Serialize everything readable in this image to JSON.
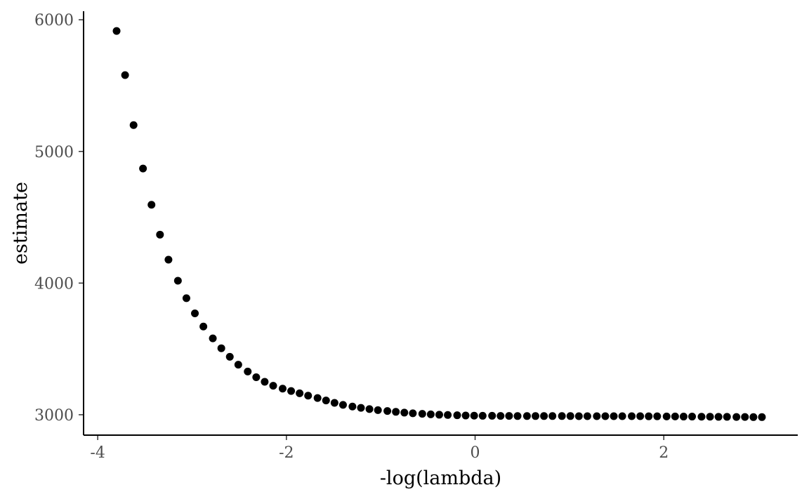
{
  "chart_data": {
    "type": "scatter",
    "title": "",
    "xlabel": "-log(lambda)",
    "ylabel": "estimate",
    "xlim": [
      -4.15,
      3.42
    ],
    "ylim": [
      2845,
      6065
    ],
    "grid": false,
    "x_ticks": [
      {
        "value": -4,
        "label": "-4"
      },
      {
        "value": -2,
        "label": "-2"
      },
      {
        "value": 0,
        "label": "0"
      },
      {
        "value": 2,
        "label": "2"
      }
    ],
    "y_ticks": [
      {
        "value": 3000,
        "label": "3000"
      },
      {
        "value": 4000,
        "label": "4000"
      },
      {
        "value": 5000,
        "label": "5000"
      },
      {
        "value": 6000,
        "label": "6000"
      }
    ],
    "series": [
      {
        "color": "#000000",
        "x": [
          -3.8,
          -3.71,
          -3.62,
          -3.52,
          -3.43,
          -3.34,
          -3.25,
          -3.15,
          -3.06,
          -2.97,
          -2.88,
          -2.78,
          -2.69,
          -2.6,
          -2.51,
          -2.41,
          -2.32,
          -2.23,
          -2.14,
          -2.04,
          -1.95,
          -1.86,
          -1.77,
          -1.67,
          -1.58,
          -1.49,
          -1.4,
          -1.3,
          -1.21,
          -1.12,
          -1.03,
          -0.93,
          -0.84,
          -0.75,
          -0.66,
          -0.56,
          -0.47,
          -0.38,
          -0.29,
          -0.19,
          -0.1,
          -0.01,
          0.08,
          0.18,
          0.27,
          0.36,
          0.45,
          0.55,
          0.64,
          0.73,
          0.82,
          0.92,
          1.01,
          1.1,
          1.19,
          1.29,
          1.38,
          1.47,
          1.56,
          1.66,
          1.75,
          1.84,
          1.93,
          2.03,
          2.12,
          2.21,
          2.3,
          2.4,
          2.49,
          2.58,
          2.67,
          2.77,
          2.86,
          2.95,
          3.04
        ],
        "y": [
          5915,
          5580,
          5200,
          4870,
          4595,
          4368,
          4178,
          4018,
          3885,
          3770,
          3670,
          3580,
          3505,
          3440,
          3380,
          3328,
          3285,
          3250,
          3220,
          3198,
          3180,
          3163,
          3145,
          3127,
          3108,
          3090,
          3075,
          3062,
          3052,
          3043,
          3035,
          3028,
          3022,
          3016,
          3011,
          3007,
          3003,
          3000,
          2998,
          2996,
          2994,
          2993,
          2992,
          2992,
          2991,
          2991,
          2990,
          2990,
          2990,
          2990,
          2990,
          2990,
          2990,
          2989,
          2989,
          2989,
          2989,
          2989,
          2989,
          2989,
          2989,
          2988,
          2988,
          2987,
          2987,
          2986,
          2986,
          2985,
          2985,
          2984,
          2984,
          2983,
          2983,
          2982,
          2982
        ]
      }
    ]
  }
}
